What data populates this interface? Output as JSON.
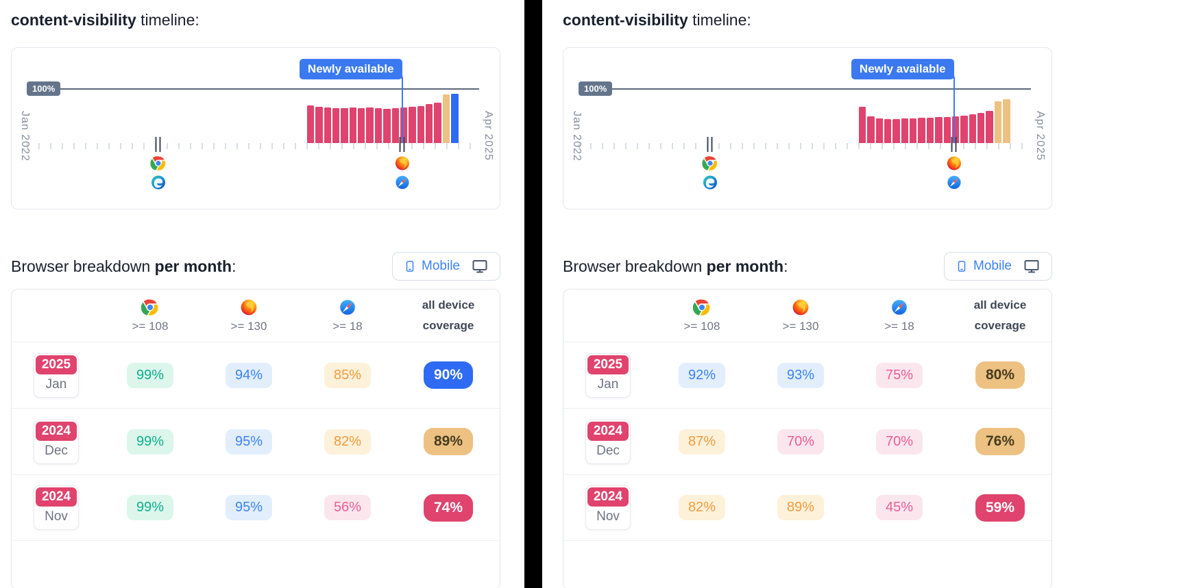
{
  "colors": {
    "pink": "#e0436d",
    "tan": "#ecc181",
    "blue": "#2e6bf2",
    "badge_blue": "#3b79f1",
    "slate": "#64748b"
  },
  "icons": {
    "device_toggle": [
      "phone-icon",
      "monitor-icon"
    ],
    "timeline_marker_1": [
      "chrome-icon",
      "edge-icon"
    ],
    "timeline_marker_2": [
      "firefox-icon",
      "safari-icon"
    ]
  },
  "panels": [
    {
      "title": {
        "feature": "content-visibility",
        "rest": " timeline:"
      },
      "timeline": {
        "badge": "Newly available",
        "y_label": "100%",
        "axis_start": "Jan 2022",
        "axis_end": "Apr 2025",
        "bars": [
          {
            "h": 69,
            "c": "pink"
          },
          {
            "h": 66,
            "c": "pink"
          },
          {
            "h": 65,
            "c": "pink"
          },
          {
            "h": 64,
            "c": "pink"
          },
          {
            "h": 64,
            "c": "pink"
          },
          {
            "h": 65,
            "c": "pink"
          },
          {
            "h": 64,
            "c": "pink"
          },
          {
            "h": 65,
            "c": "pink"
          },
          {
            "h": 64,
            "c": "pink"
          },
          {
            "h": 63,
            "c": "pink"
          },
          {
            "h": 64,
            "c": "pink"
          },
          {
            "h": 65,
            "c": "pink"
          },
          {
            "h": 66,
            "c": "pink"
          },
          {
            "h": 68,
            "c": "pink"
          },
          {
            "h": 71,
            "c": "pink"
          },
          {
            "h": 74,
            "c": "pink"
          },
          {
            "h": 89,
            "c": "tan"
          },
          {
            "h": 90,
            "c": "blue"
          }
        ]
      },
      "breakdown": {
        "heading_plain": "Browser breakdown ",
        "heading_bold": "per month",
        "heading_suffix": ":",
        "toggle_mobile": "Mobile",
        "columns": [
          {
            "browser": "chrome",
            "version": ">= 108"
          },
          {
            "browser": "firefox",
            "version": ">= 130"
          },
          {
            "browser": "safari",
            "version": ">= 18"
          },
          {
            "label1": "all device",
            "label2": "coverage"
          }
        ],
        "rows": [
          {
            "year": "2025",
            "month": "Jan",
            "values": [
              {
                "text": "99%",
                "tone": "green"
              },
              {
                "text": "94%",
                "tone": "blue"
              },
              {
                "text": "85%",
                "tone": "orange"
              }
            ],
            "coverage": {
              "text": "90%",
              "tone": "blue"
            }
          },
          {
            "year": "2024",
            "month": "Dec",
            "values": [
              {
                "text": "99%",
                "tone": "green"
              },
              {
                "text": "95%",
                "tone": "blue"
              },
              {
                "text": "82%",
                "tone": "orange"
              }
            ],
            "coverage": {
              "text": "89%",
              "tone": "tan"
            }
          },
          {
            "year": "2024",
            "month": "Nov",
            "values": [
              {
                "text": "99%",
                "tone": "green"
              },
              {
                "text": "95%",
                "tone": "blue"
              },
              {
                "text": "56%",
                "tone": "pink"
              }
            ],
            "coverage": {
              "text": "74%",
              "tone": "pink"
            }
          }
        ]
      }
    },
    {
      "title": {
        "feature": "content-visibility",
        "rest": " timeline:"
      },
      "timeline": {
        "badge": "Newly available",
        "y_label": "100%",
        "axis_start": "Jan 2022",
        "axis_end": "Apr 2025",
        "bars": [
          {
            "h": 66,
            "c": "pink"
          },
          {
            "h": 49,
            "c": "pink"
          },
          {
            "h": 45,
            "c": "pink"
          },
          {
            "h": 44,
            "c": "pink"
          },
          {
            "h": 44,
            "c": "pink"
          },
          {
            "h": 45,
            "c": "pink"
          },
          {
            "h": 45,
            "c": "pink"
          },
          {
            "h": 46,
            "c": "pink"
          },
          {
            "h": 46,
            "c": "pink"
          },
          {
            "h": 47,
            "c": "pink"
          },
          {
            "h": 48,
            "c": "pink"
          },
          {
            "h": 49,
            "c": "pink"
          },
          {
            "h": 50,
            "c": "pink"
          },
          {
            "h": 52,
            "c": "pink"
          },
          {
            "h": 55,
            "c": "pink"
          },
          {
            "h": 59,
            "c": "pink"
          },
          {
            "h": 76,
            "c": "tan"
          },
          {
            "h": 80,
            "c": "tan"
          }
        ]
      },
      "breakdown": {
        "heading_plain": "Browser breakdown ",
        "heading_bold": "per month",
        "heading_suffix": ":",
        "toggle_mobile": "Mobile",
        "columns": [
          {
            "browser": "chrome",
            "version": ">= 108"
          },
          {
            "browser": "firefox",
            "version": ">= 130"
          },
          {
            "browser": "safari",
            "version": ">= 18"
          },
          {
            "label1": "all device",
            "label2": "coverage"
          }
        ],
        "rows": [
          {
            "year": "2025",
            "month": "Jan",
            "values": [
              {
                "text": "92%",
                "tone": "blue"
              },
              {
                "text": "93%",
                "tone": "blue"
              },
              {
                "text": "75%",
                "tone": "pink"
              }
            ],
            "coverage": {
              "text": "80%",
              "tone": "tan"
            }
          },
          {
            "year": "2024",
            "month": "Dec",
            "values": [
              {
                "text": "87%",
                "tone": "orange"
              },
              {
                "text": "70%",
                "tone": "pink"
              },
              {
                "text": "70%",
                "tone": "pink"
              }
            ],
            "coverage": {
              "text": "76%",
              "tone": "tan"
            }
          },
          {
            "year": "2024",
            "month": "Nov",
            "values": [
              {
                "text": "82%",
                "tone": "orange"
              },
              {
                "text": "89%",
                "tone": "orange"
              },
              {
                "text": "45%",
                "tone": "pink"
              }
            ],
            "coverage": {
              "text": "59%",
              "tone": "pink"
            }
          }
        ]
      }
    }
  ],
  "chart_data": [
    {
      "type": "bar",
      "panel": "left",
      "title": "content-visibility timeline",
      "annotation": "Newly available",
      "reference_line": {
        "label": "100%",
        "value": 100
      },
      "x_axis": {
        "start": "Jan 2022",
        "end": "Apr 2025"
      },
      "ylim": [
        0,
        100
      ],
      "values": [
        69,
        66,
        65,
        64,
        64,
        65,
        64,
        65,
        64,
        63,
        64,
        65,
        66,
        68,
        71,
        74,
        89,
        90
      ],
      "bar_colors": [
        "pink",
        "pink",
        "pink",
        "pink",
        "pink",
        "pink",
        "pink",
        "pink",
        "pink",
        "pink",
        "pink",
        "pink",
        "pink",
        "pink",
        "pink",
        "pink",
        "tan",
        "blue"
      ],
      "browser_markers": [
        {
          "browsers": [
            "Chrome",
            "Edge"
          ],
          "x_fraction": 0.3
        },
        {
          "browsers": [
            "Firefox",
            "Safari"
          ],
          "x_fraction": 0.8
        }
      ]
    },
    {
      "type": "table",
      "panel": "left",
      "title": "Browser breakdown per month (Mobile)",
      "columns": [
        "Chrome >= 108",
        "Firefox >= 130",
        "Safari >= 18",
        "all device coverage"
      ],
      "rows": [
        [
          "2025 Jan",
          "99%",
          "94%",
          "85%",
          "90%"
        ],
        [
          "2024 Dec",
          "99%",
          "95%",
          "82%",
          "89%"
        ],
        [
          "2024 Nov",
          "99%",
          "95%",
          "56%",
          "74%"
        ]
      ]
    },
    {
      "type": "bar",
      "panel": "right",
      "title": "content-visibility timeline",
      "annotation": "Newly available",
      "reference_line": {
        "label": "100%",
        "value": 100
      },
      "x_axis": {
        "start": "Jan 2022",
        "end": "Apr 2025"
      },
      "ylim": [
        0,
        100
      ],
      "values": [
        66,
        49,
        45,
        44,
        44,
        45,
        45,
        46,
        46,
        47,
        48,
        49,
        50,
        52,
        55,
        59,
        76,
        80
      ],
      "bar_colors": [
        "pink",
        "pink",
        "pink",
        "pink",
        "pink",
        "pink",
        "pink",
        "pink",
        "pink",
        "pink",
        "pink",
        "pink",
        "pink",
        "pink",
        "pink",
        "pink",
        "tan",
        "tan"
      ],
      "browser_markers": [
        {
          "browsers": [
            "Chrome",
            "Edge"
          ],
          "x_fraction": 0.3
        },
        {
          "browsers": [
            "Firefox",
            "Safari"
          ],
          "x_fraction": 0.8
        }
      ]
    },
    {
      "type": "table",
      "panel": "right",
      "title": "Browser breakdown per month (Mobile)",
      "columns": [
        "Chrome >= 108",
        "Firefox >= 130",
        "Safari >= 18",
        "all device coverage"
      ],
      "rows": [
        [
          "2025 Jan",
          "92%",
          "93%",
          "75%",
          "80%"
        ],
        [
          "2024 Dec",
          "87%",
          "70%",
          "70%",
          "76%"
        ],
        [
          "2024 Nov",
          "82%",
          "89%",
          "45%",
          "59%"
        ]
      ]
    }
  ]
}
